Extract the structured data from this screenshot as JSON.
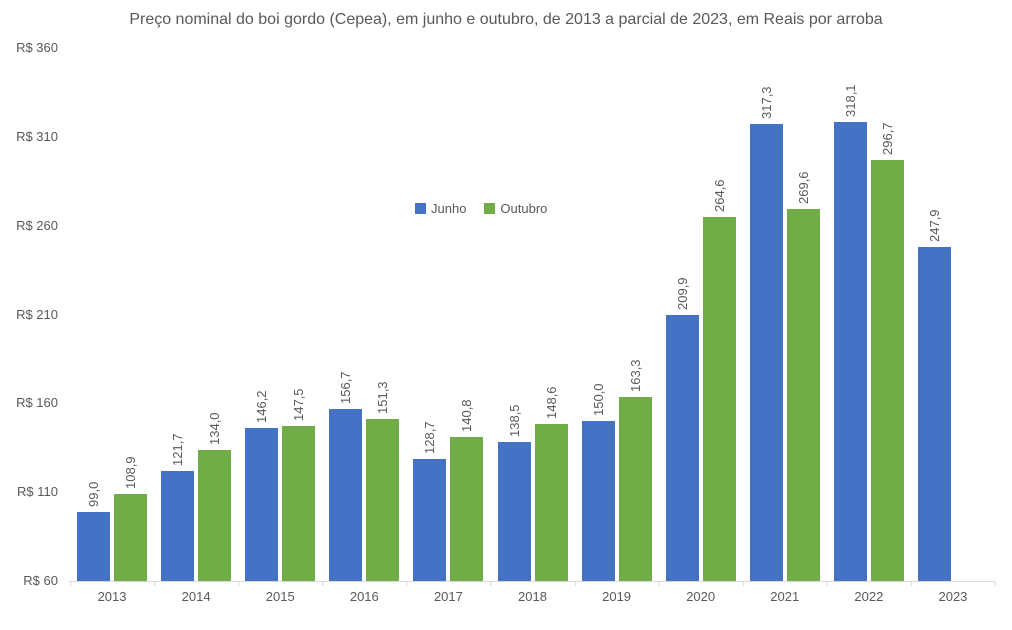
{
  "chart_data": {
    "type": "bar",
    "title": "Preço nominal do boi gordo (Cepea), em junho e outubro, de 2013 a parcial de 2023, em Reais por arroba",
    "categories": [
      "2013",
      "2014",
      "2015",
      "2016",
      "2017",
      "2018",
      "2019",
      "2020",
      "2021",
      "2022",
      "2023"
    ],
    "series": [
      {
        "name": "Junho",
        "color": "#4472C4",
        "values": [
          99.0,
          121.7,
          146.2,
          156.7,
          128.7,
          138.5,
          150.0,
          209.9,
          317.3,
          318.1,
          247.9
        ]
      },
      {
        "name": "Outubro",
        "color": "#70AD47",
        "values": [
          108.9,
          134.0,
          147.5,
          151.3,
          140.8,
          148.6,
          163.3,
          264.6,
          269.6,
          296.7,
          null
        ]
      }
    ],
    "data_labels": {
      "junho": [
        "99,0",
        "121,7",
        "146,2",
        "156,7",
        "128,7",
        "138,5",
        "150,0",
        "209,9",
        "317,3",
        "318,1",
        "247,9"
      ],
      "outubro": [
        "108,9",
        "134,0",
        "147,5",
        "151,3",
        "140,8",
        "148,6",
        "163,3",
        "264,6",
        "269,6",
        "296,7",
        null
      ]
    },
    "y_axis": {
      "min": 60,
      "max": 360,
      "step": 50,
      "tick_prefix": "R$ ",
      "tick_labels": [
        "R$ 60",
        "R$ 110",
        "R$ 160",
        "R$ 210",
        "R$ 260",
        "R$ 310",
        "R$ 360"
      ]
    },
    "legend": {
      "position": "inside-plot-center",
      "entries": [
        "Junho",
        "Outubro"
      ]
    },
    "grid": false,
    "colors": {
      "axis_line": "#d9d9d9",
      "text": "#595959",
      "background": "#ffffff"
    }
  }
}
